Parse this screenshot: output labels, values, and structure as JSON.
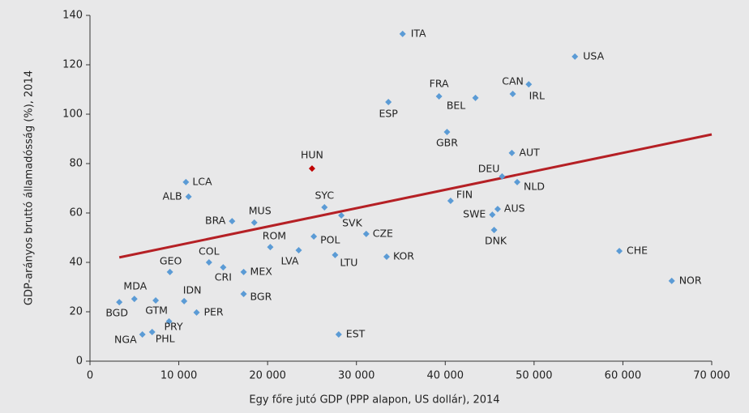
{
  "chart_data": {
    "type": "scatter",
    "xlabel": "Egy főre jutó GDP (PPP alapon, US dollár), 2014",
    "ylabel": "GDP-arányos bruttó államadósság (%), 2014",
    "labels": [
      "ITA",
      "USA",
      "FRA",
      "CAN",
      "BEL",
      "IRL",
      "ESP",
      "GBR",
      "AUT",
      "HUN",
      "DEU",
      "NLD",
      "LCA",
      "ALB",
      "FIN",
      "SYC",
      "AUS",
      "SWE",
      "BRA",
      "MUS",
      "SVK",
      "DNK",
      "CZE",
      "POL",
      "ROM",
      "LVA",
      "LTU",
      "KOR",
      "CHE",
      "COL",
      "CRI",
      "MEX",
      "GEO",
      "NOR",
      "BGR",
      "MDA",
      "GTM",
      "BGD",
      "IDN",
      "PER",
      "PRY",
      "NGA",
      "PHL",
      "EST"
    ],
    "x": [
      35200,
      54600,
      39300,
      47600,
      43400,
      49400,
      33600,
      40200,
      47500,
      25000,
      46400,
      48100,
      10800,
      11100,
      40600,
      26400,
      45900,
      45300,
      16000,
      18500,
      28300,
      45500,
      31100,
      25200,
      20300,
      23500,
      27600,
      33400,
      59600,
      13400,
      15000,
      17300,
      9000,
      65500,
      17300,
      5000,
      7400,
      3300,
      10600,
      12000,
      8900,
      5900,
      7000,
      28000
    ],
    "y": [
      132.5,
      123.3,
      107.2,
      108.2,
      106.6,
      112.1,
      104.9,
      92.8,
      84.3,
      78.0,
      74.8,
      72.5,
      72.5,
      66.6,
      64.9,
      62.3,
      61.6,
      59.3,
      56.7,
      56.1,
      59.0,
      53.1,
      51.5,
      50.5,
      46.2,
      44.9,
      43.0,
      42.3,
      44.6,
      40.0,
      38.0,
      36.1,
      36.1,
      32.5,
      27.2,
      25.2,
      24.6,
      23.9,
      24.3,
      19.7,
      16.1,
      10.8,
      11.8,
      10.8
    ],
    "colors": [
      "#5b9bd5",
      "#5b9bd5",
      "#5b9bd5",
      "#5b9bd5",
      "#5b9bd5",
      "#5b9bd5",
      "#5b9bd5",
      "#5b9bd5",
      "#5b9bd5",
      "#c00000",
      "#5b9bd5",
      "#5b9bd5",
      "#5b9bd5",
      "#5b9bd5",
      "#5b9bd5",
      "#5b9bd5",
      "#5b9bd5",
      "#5b9bd5",
      "#5b9bd5",
      "#5b9bd5",
      "#5b9bd5",
      "#5b9bd5",
      "#5b9bd5",
      "#5b9bd5",
      "#5b9bd5",
      "#5b9bd5",
      "#5b9bd5",
      "#5b9bd5",
      "#5b9bd5",
      "#5b9bd5",
      "#5b9bd5",
      "#5b9bd5",
      "#5b9bd5",
      "#5b9bd5",
      "#5b9bd5",
      "#5b9bd5",
      "#5b9bd5",
      "#5b9bd5",
      "#5b9bd5",
      "#5b9bd5",
      "#5b9bd5",
      "#5b9bd5",
      "#5b9bd5",
      "#5b9bd5"
    ],
    "trendline": {
      "x": [
        3300,
        70000
      ],
      "y": [
        42.0,
        91.8
      ],
      "color": "#b52025"
    },
    "xlim": [
      0,
      70000
    ],
    "xticks": [
      0,
      {
        "value": 10000,
        "label": "10 000"
      },
      {
        "value": 20000,
        "label": "20 000"
      },
      {
        "value": 30000,
        "label": "30 000"
      },
      {
        "value": 40000,
        "label": "40 000"
      },
      {
        "value": 50000,
        "label": "50 000"
      },
      {
        "value": 60000,
        "label": "60 000"
      },
      {
        "value": 70000,
        "label": "70 000"
      }
    ],
    "ylim": [
      0,
      140
    ],
    "yticks": [
      0,
      20,
      40,
      60,
      80,
      100,
      120,
      140
    ],
    "grid": false
  }
}
